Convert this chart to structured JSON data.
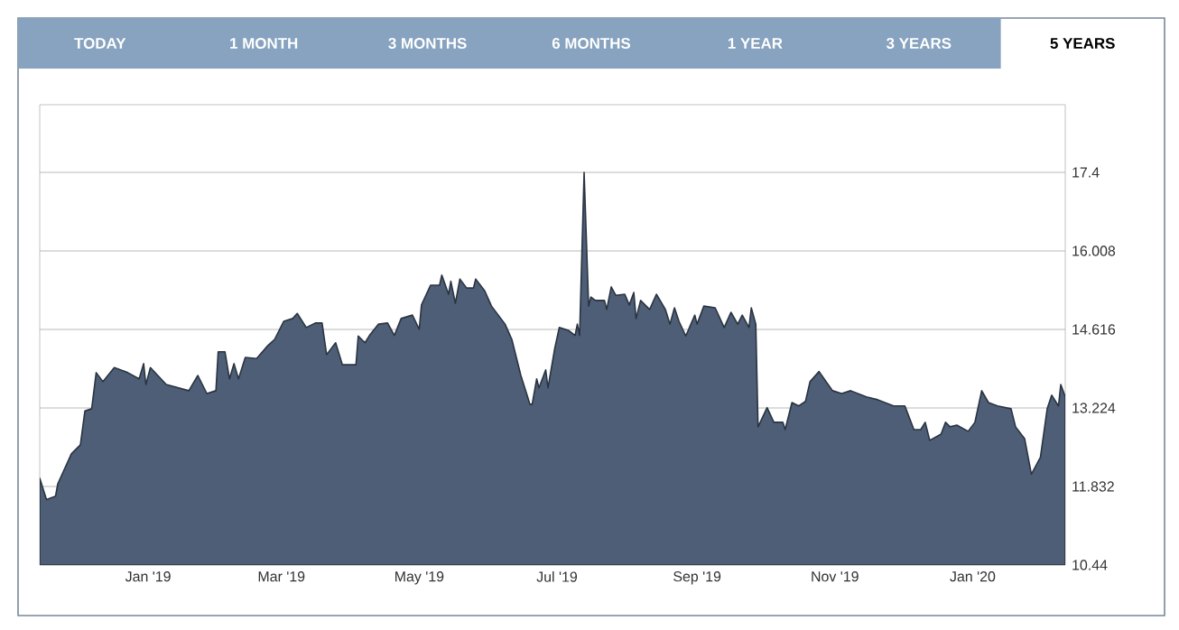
{
  "chart_data": {
    "type": "area",
    "annotations": [
      "TODAY",
      "1 MONTH",
      "3 MONTHS",
      "6 MONTHS",
      "1 YEAR",
      "3 YEARS",
      "5 YEARS"
    ],
    "x": [
      "2018-11-14",
      "2018-11-17",
      "2018-11-21",
      "2018-11-22",
      "2018-11-28",
      "2018-12-02",
      "2018-12-04",
      "2018-12-07",
      "2018-12-09",
      "2018-12-12",
      "2018-12-17",
      "2018-12-23",
      "2018-12-28",
      "2018-12-30",
      "2018-12-31",
      "2019-01-02",
      "2019-01-09",
      "2019-01-19",
      "2019-01-23",
      "2019-01-27",
      "2019-01-31",
      "2019-02-01",
      "2019-02-04",
      "2019-02-06",
      "2019-02-08",
      "2019-02-10",
      "2019-02-13",
      "2019-02-18",
      "2019-02-23",
      "2019-02-26",
      "2019-03-02",
      "2019-03-06",
      "2019-03-08",
      "2019-03-12",
      "2019-03-16",
      "2019-03-19",
      "2019-03-21",
      "2019-03-25",
      "2019-03-28",
      "2019-04-03",
      "2019-04-04",
      "2019-04-07",
      "2019-04-09",
      "2019-04-13",
      "2019-04-17",
      "2019-04-20",
      "2019-04-23",
      "2019-04-28",
      "2019-05-01",
      "2019-05-02",
      "2019-05-06",
      "2019-05-10",
      "2019-05-11",
      "2019-05-14",
      "2019-05-15",
      "2019-05-17",
      "2019-05-19",
      "2019-05-22",
      "2019-05-25",
      "2019-05-26",
      "2019-05-30",
      "2019-06-02",
      "2019-06-05",
      "2019-06-08",
      "2019-06-11",
      "2019-06-15",
      "2019-06-18",
      "2019-06-19",
      "2019-06-20",
      "2019-06-22",
      "2019-06-23",
      "2019-06-26",
      "2019-06-27",
      "2019-06-30",
      "2019-07-02",
      "2019-07-06",
      "2019-07-09",
      "2019-07-10",
      "2019-07-11",
      "2019-07-13",
      "2019-07-15",
      "2019-07-16",
      "2019-07-18",
      "2019-07-22",
      "2019-07-23",
      "2019-07-25",
      "2019-07-27",
      "2019-07-31",
      "2019-08-02",
      "2019-08-04",
      "2019-08-05",
      "2019-08-07",
      "2019-08-11",
      "2019-08-14",
      "2019-08-18",
      "2019-08-20",
      "2019-08-22",
      "2019-08-24",
      "2019-08-27",
      "2019-08-31",
      "2019-09-01",
      "2019-09-04",
      "2019-09-09",
      "2019-09-13",
      "2019-09-16",
      "2019-09-19",
      "2019-09-21",
      "2019-09-24",
      "2019-09-25",
      "2019-09-27",
      "2019-09-28",
      "2019-10-02",
      "2019-10-05",
      "2019-10-09",
      "2019-10-10",
      "2019-10-13",
      "2019-10-16",
      "2019-10-19",
      "2019-10-21",
      "2019-10-25",
      "2019-10-29",
      "2019-10-31",
      "2019-11-04",
      "2019-11-08",
      "2019-11-15",
      "2019-11-20",
      "2019-11-27",
      "2019-12-02",
      "2019-12-06",
      "2019-12-09",
      "2019-12-11",
      "2019-12-13",
      "2019-12-18",
      "2019-12-20",
      "2019-12-22",
      "2019-12-25",
      "2019-12-30",
      "2020-01-02",
      "2020-01-05",
      "2020-01-08",
      "2020-01-12",
      "2020-01-18",
      "2020-01-20",
      "2020-01-24",
      "2020-01-27",
      "2020-01-31",
      "2020-02-03",
      "2020-02-05",
      "2020-02-08",
      "2020-02-09",
      "2020-02-11"
    ],
    "series": [
      {
        "color": "#4d5e76",
        "values": [
          11.98,
          11.6,
          11.66,
          11.88,
          12.41,
          12.57,
          13.17,
          13.21,
          13.85,
          13.69,
          13.94,
          13.85,
          13.74,
          14.01,
          13.64,
          13.94,
          13.64,
          13.53,
          13.8,
          13.48,
          13.53,
          14.22,
          14.22,
          13.74,
          14.01,
          13.74,
          14.12,
          14.1,
          14.33,
          14.44,
          14.76,
          14.81,
          14.9,
          14.65,
          14.73,
          14.73,
          14.17,
          14.38,
          13.99,
          13.99,
          14.5,
          14.38,
          14.51,
          14.71,
          14.73,
          14.51,
          14.81,
          14.87,
          14.62,
          15.05,
          15.4,
          15.4,
          15.58,
          15.24,
          15.47,
          15.08,
          15.51,
          15.35,
          15.35,
          15.51,
          15.3,
          15.03,
          14.87,
          14.71,
          14.44,
          13.8,
          13.42,
          13.29,
          13.29,
          13.74,
          13.58,
          13.9,
          13.58,
          14.28,
          14.65,
          14.6,
          14.51,
          14.71,
          14.51,
          17.4,
          15.03,
          15.19,
          15.13,
          15.13,
          14.97,
          15.37,
          15.22,
          15.24,
          15.05,
          15.27,
          14.81,
          15.13,
          14.97,
          15.24,
          14.97,
          14.71,
          15.0,
          14.76,
          14.5,
          14.87,
          14.71,
          15.03,
          15.0,
          14.65,
          14.92,
          14.71,
          14.87,
          14.65,
          15.0,
          14.71,
          12.89,
          13.23,
          12.97,
          12.97,
          12.84,
          13.32,
          13.26,
          13.34,
          13.69,
          13.87,
          13.64,
          13.53,
          13.48,
          13.53,
          13.42,
          13.37,
          13.26,
          13.26,
          12.84,
          12.84,
          12.97,
          12.65,
          12.76,
          12.97,
          12.89,
          12.92,
          12.81,
          12.97,
          13.53,
          13.32,
          13.26,
          13.21,
          12.89,
          12.68,
          12.05,
          12.35,
          13.21,
          13.45,
          13.26,
          13.64,
          13.42
        ]
      }
    ],
    "xlim": [
      "2018-11-14",
      "2020-02-11"
    ],
    "xticks": [
      {
        "value": "2019-01-01",
        "label": "Jan '19"
      },
      {
        "value": "2019-03-01",
        "label": "Mar '19"
      },
      {
        "value": "2019-05-01",
        "label": "May '19"
      },
      {
        "value": "2019-07-01",
        "label": "Jul '19"
      },
      {
        "value": "2019-09-01",
        "label": "Sep '19"
      },
      {
        "value": "2019-11-01",
        "label": "Nov '19"
      },
      {
        "value": "2020-01-01",
        "label": "Jan '20"
      }
    ],
    "ylim": [
      10.44,
      18.6
    ],
    "yticks": [
      10.44,
      11.832,
      13.224,
      14.616,
      16.008,
      17.4
    ],
    "grid": "y"
  }
}
